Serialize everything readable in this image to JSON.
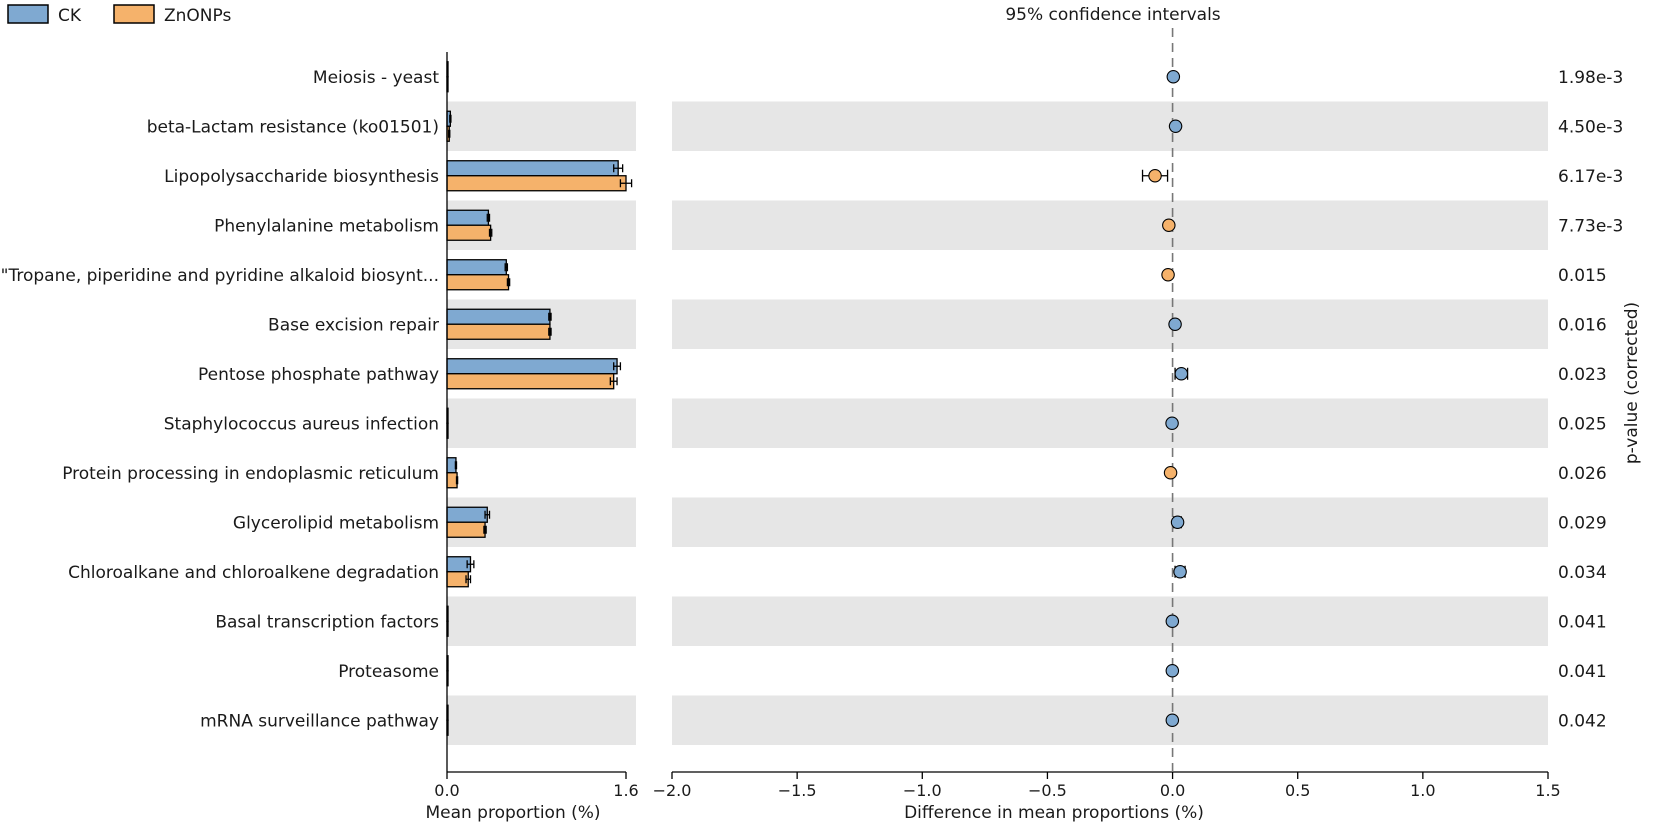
{
  "chart_data": {
    "type": "extended-error-bar",
    "legend": [
      {
        "name": "CK",
        "color": "#7fa9d1"
      },
      {
        "name": "ZnONPs",
        "color": "#f5b26b"
      }
    ],
    "categories": [
      "Meiosis - yeast",
      "beta-Lactam resistance (ko01501)",
      "Lipopolysaccharide biosynthesis",
      "Phenylalanine metabolism",
      "\"Tropane, piperidine and pyridine alkaloid biosynt...",
      "Base excision repair",
      "Pentose phosphate pathway",
      "Staphylococcus aureus infection",
      "Protein processing in endoplasmic reticulum",
      "Glycerolipid metabolism",
      "Chloroalkane and chloroalkene degradation",
      "Basal transcription factors",
      "Proteasome",
      "mRNA surveillance pathway"
    ],
    "mean_proportion": {
      "xlabel": "Mean proportion (%)",
      "xlim": [
        0.0,
        1.6
      ],
      "ticks": [
        0.0,
        1.6
      ],
      "tick_labels": [
        "0.0",
        "1.6"
      ],
      "series": [
        {
          "name": "CK",
          "values": [
            0.005,
            0.03,
            1.53,
            0.37,
            0.53,
            0.92,
            1.52,
            0.005,
            0.08,
            0.36,
            0.21,
            0.005,
            0.005,
            0.005
          ],
          "errors": [
            0.002,
            0.005,
            0.04,
            0.01,
            0.01,
            0.01,
            0.03,
            0.002,
            0.005,
            0.02,
            0.03,
            0.002,
            0.002,
            0.002
          ]
        },
        {
          "name": "ZnONPs",
          "values": [
            0.005,
            0.02,
            1.6,
            0.39,
            0.55,
            0.92,
            1.49,
            0.005,
            0.09,
            0.34,
            0.19,
            0.005,
            0.005,
            0.005
          ],
          "errors": [
            0.002,
            0.005,
            0.05,
            0.01,
            0.01,
            0.01,
            0.03,
            0.002,
            0.005,
            0.01,
            0.02,
            0.002,
            0.002,
            0.002
          ]
        }
      ]
    },
    "difference": {
      "title": "95% confidence intervals",
      "xlabel": "Difference in mean proportions (%)",
      "xlim": [
        -2.0,
        1.5
      ],
      "ticks": [
        -2.0,
        -1.5,
        -1.0,
        -0.5,
        0.0,
        0.5,
        1.0,
        1.5
      ],
      "tick_labels": [
        "−2.0",
        "−1.5",
        "−1.0",
        "−0.5",
        "0.0",
        "0.5",
        "1.0",
        "1.5"
      ],
      "values": [
        0.003,
        0.012,
        -0.07,
        -0.015,
        -0.018,
        0.01,
        0.035,
        -0.002,
        -0.008,
        0.02,
        0.03,
        -0.001,
        -0.001,
        -0.001
      ],
      "ci_low": [
        0.0,
        0.005,
        -0.12,
        -0.025,
        -0.028,
        0.003,
        0.01,
        -0.006,
        -0.015,
        0.005,
        0.01,
        -0.004,
        -0.004,
        -0.004
      ],
      "ci_high": [
        0.006,
        0.02,
        -0.02,
        -0.005,
        -0.008,
        0.017,
        0.06,
        0.002,
        -0.001,
        0.035,
        0.05,
        0.002,
        0.002,
        0.002
      ],
      "enriched_in": [
        "CK",
        "CK",
        "ZnONPs",
        "ZnONPs",
        "ZnONPs",
        "CK",
        "CK",
        "CK",
        "ZnONPs",
        "CK",
        "CK",
        "CK",
        "CK",
        "CK"
      ]
    },
    "p_values": {
      "label": "p-value (corrected)",
      "values": [
        "1.98e-3",
        "4.50e-3",
        "6.17e-3",
        "7.73e-3",
        "0.015",
        "0.016",
        "0.023",
        "0.025",
        "0.026",
        "0.029",
        "0.034",
        "0.041",
        "0.041",
        "0.042"
      ]
    }
  }
}
